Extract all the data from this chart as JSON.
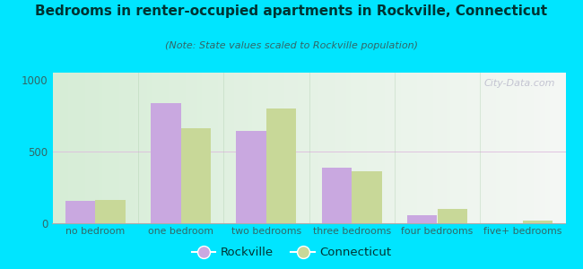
{
  "title": "Bedrooms in renter-occupied apartments in Rockville, Connecticut",
  "subtitle": "(Note: State values scaled to Rockville population)",
  "categories": [
    "no bedroom",
    "one bedroom",
    "two bedrooms",
    "three bedrooms",
    "four bedrooms",
    "five+ bedrooms"
  ],
  "rockville": [
    155,
    840,
    645,
    390,
    58,
    0
  ],
  "connecticut": [
    160,
    660,
    800,
    365,
    100,
    18
  ],
  "rockville_color": "#c9a8e0",
  "connecticut_color": "#c8d898",
  "ylim": [
    0,
    1050
  ],
  "yticks": [
    0,
    500,
    1000
  ],
  "background_outer": "#00e5ff",
  "bar_width": 0.35,
  "watermark": "City-Data.com",
  "legend_rockville": "Rockville",
  "legend_connecticut": "Connecticut",
  "title_color": "#003333",
  "subtitle_color": "#336666",
  "tick_color": "#336666"
}
